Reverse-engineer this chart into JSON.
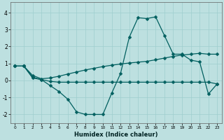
{
  "xlabel": "Humidex (Indice chaleur)",
  "xlim": [
    -0.5,
    23.5
  ],
  "ylim": [
    -2.5,
    4.6
  ],
  "xticks": [
    0,
    1,
    2,
    3,
    4,
    5,
    6,
    7,
    8,
    9,
    10,
    11,
    12,
    13,
    14,
    15,
    16,
    17,
    18,
    19,
    20,
    21,
    22,
    23
  ],
  "yticks": [
    -2,
    -1,
    0,
    1,
    2,
    3,
    4
  ],
  "background_color": "#bde0e0",
  "grid_color": "#9ecece",
  "line_color": "#005f5f",
  "line1_x": [
    0,
    1,
    2,
    3,
    4,
    5,
    6,
    7,
    8,
    9,
    10,
    11,
    12,
    13,
    14,
    15,
    16,
    17,
    18,
    19,
    20,
    21,
    22,
    23
  ],
  "line1_y": [
    0.85,
    0.85,
    0.15,
    0.05,
    -0.3,
    -0.65,
    -1.1,
    -1.85,
    -2.0,
    -2.0,
    -2.0,
    -0.75,
    0.4,
    2.55,
    3.7,
    3.65,
    3.75,
    2.65,
    1.55,
    1.55,
    1.2,
    1.1,
    -0.8,
    -0.2
  ],
  "line2_x": [
    0,
    1,
    2,
    3,
    4,
    5,
    6,
    7,
    8,
    9,
    10,
    11,
    12,
    13,
    14,
    15,
    16,
    17,
    18,
    19,
    20,
    21,
    22,
    23
  ],
  "line2_y": [
    0.85,
    0.85,
    0.2,
    0.05,
    -0.05,
    -0.1,
    -0.1,
    -0.1,
    -0.1,
    -0.1,
    -0.1,
    -0.1,
    -0.1,
    -0.1,
    -0.1,
    -0.1,
    -0.1,
    -0.1,
    -0.1,
    -0.1,
    -0.1,
    -0.1,
    -0.1,
    -0.2
  ],
  "line3_x": [
    0,
    1,
    2,
    3,
    4,
    5,
    6,
    7,
    8,
    9,
    10,
    11,
    12,
    13,
    14,
    15,
    16,
    17,
    18,
    19,
    20,
    21,
    22,
    23
  ],
  "line3_y": [
    0.85,
    0.85,
    0.3,
    0.1,
    0.15,
    0.25,
    0.38,
    0.5,
    0.62,
    0.72,
    0.82,
    0.9,
    0.97,
    1.03,
    1.08,
    1.13,
    1.22,
    1.32,
    1.42,
    1.5,
    1.55,
    1.6,
    1.55,
    1.55
  ]
}
